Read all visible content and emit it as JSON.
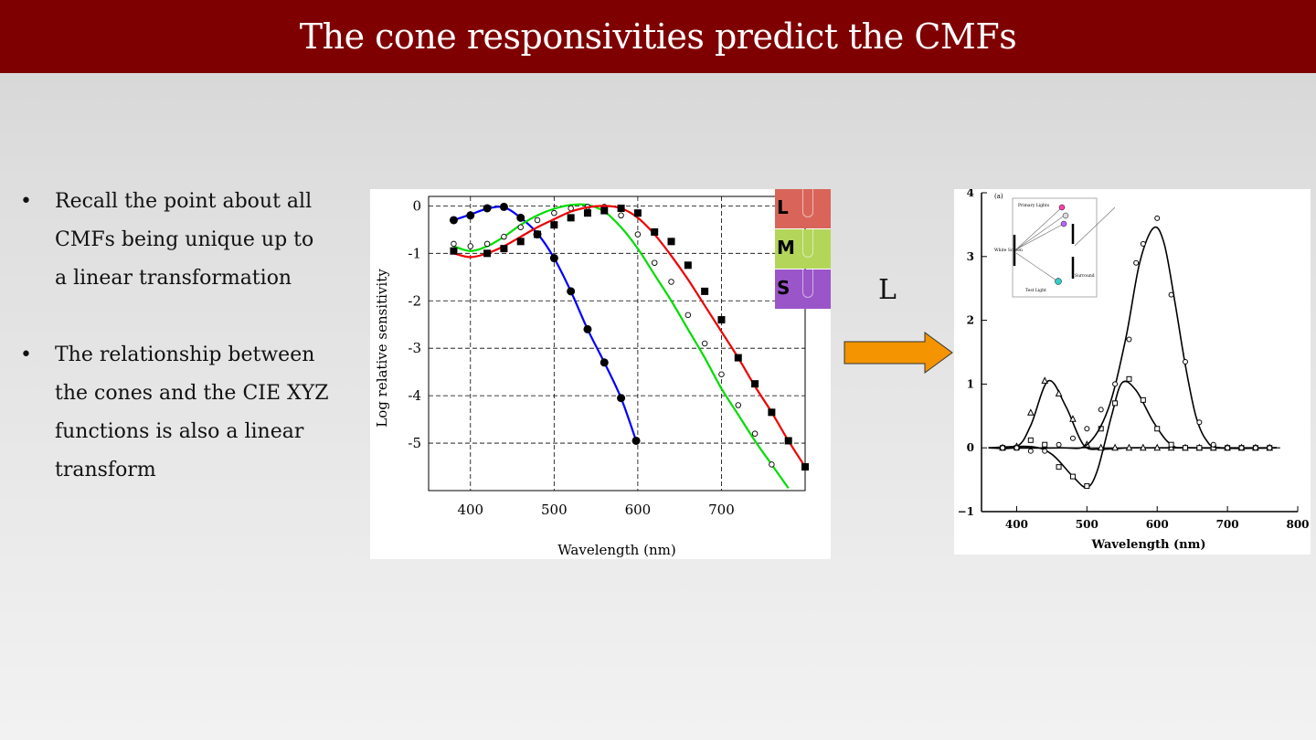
{
  "title": "The cone responsivities predict the CMFs",
  "bullets": [
    "Recall the point about all CMFs being unique up to a linear transformation",
    "The relationship between the cones and the CIE XYZ functions is also a linear transform"
  ],
  "bullet_marker": "•",
  "arrow_label": "L",
  "cone_labels": [
    {
      "letter": "L",
      "color": "#d9655a"
    },
    {
      "letter": "M",
      "color": "#b3d65a"
    },
    {
      "letter": "S",
      "color": "#9a55c9"
    }
  ],
  "colors": {
    "title_bg": "#7f0000",
    "arrow": "#f39400",
    "blue_curve": "#0000ff",
    "green_curve": "#00dd00",
    "red_curve": "#ee0000"
  },
  "chart_data": [
    {
      "type": "scatter",
      "xlabel": "Wavelength (nm)",
      "ylabel": "Log relative sensitivity",
      "xlim": [
        350,
        800
      ],
      "ylim": [
        -6,
        0.2
      ],
      "xticks": [
        400,
        500,
        600,
        700
      ],
      "yticks": [
        0,
        -1,
        -2,
        -3,
        -4,
        -5
      ],
      "grid": true,
      "series": [
        {
          "color": "#0000ff",
          "marker": "filled-circle",
          "x": [
            380,
            400,
            420,
            440,
            460,
            480,
            500,
            520,
            540,
            560,
            580,
            598
          ],
          "y": [
            -0.3,
            -0.2,
            -0.05,
            -0.02,
            -0.25,
            -0.6,
            -1.1,
            -1.8,
            -2.6,
            -3.3,
            -4.05,
            -4.95
          ],
          "curve": [
            [
              380,
              -0.3
            ],
            [
              400,
              -0.18
            ],
            [
              420,
              -0.06
            ],
            [
              440,
              -0.03
            ],
            [
              460,
              -0.25
            ],
            [
              480,
              -0.58
            ],
            [
              500,
              -1.1
            ],
            [
              520,
              -1.8
            ],
            [
              540,
              -2.6
            ],
            [
              560,
              -3.3
            ],
            [
              580,
              -4.05
            ],
            [
              598,
              -4.95
            ]
          ]
        },
        {
          "color": "#00dd00",
          "marker": "open-circle",
          "x": [
            380,
            400,
            420,
            440,
            460,
            480,
            500,
            520,
            540,
            560,
            580,
            600,
            620,
            640,
            660,
            680,
            700,
            720,
            740,
            760
          ],
          "y": [
            -0.8,
            -0.85,
            -0.8,
            -0.65,
            -0.45,
            -0.3,
            -0.15,
            -0.05,
            -0.02,
            -0.02,
            -0.2,
            -0.6,
            -1.2,
            -1.6,
            -2.3,
            -2.9,
            -3.55,
            -4.2,
            -4.8,
            -5.45
          ],
          "curve": [
            [
              380,
              -0.85
            ],
            [
              400,
              -0.95
            ],
            [
              420,
              -0.85
            ],
            [
              440,
              -0.65
            ],
            [
              460,
              -0.4
            ],
            [
              480,
              -0.2
            ],
            [
              500,
              -0.06
            ],
            [
              520,
              0.02
            ],
            [
              540,
              0.02
            ],
            [
              560,
              -0.12
            ],
            [
              580,
              -0.45
            ],
            [
              600,
              -0.9
            ],
            [
              620,
              -1.45
            ],
            [
              640,
              -2.0
            ],
            [
              660,
              -2.6
            ],
            [
              680,
              -3.2
            ],
            [
              700,
              -3.85
            ],
            [
              720,
              -4.4
            ],
            [
              740,
              -4.95
            ],
            [
              760,
              -5.45
            ],
            [
              780,
              -5.95
            ]
          ]
        },
        {
          "color": "#ee0000",
          "marker": "filled-square",
          "x": [
            380,
            420,
            440,
            460,
            480,
            500,
            520,
            540,
            560,
            580,
            600,
            620,
            640,
            660,
            680,
            700,
            720,
            740,
            760,
            780,
            800
          ],
          "y": [
            -0.95,
            -1.0,
            -0.9,
            -0.75,
            -0.6,
            -0.4,
            -0.25,
            -0.15,
            -0.1,
            -0.05,
            -0.15,
            -0.55,
            -0.75,
            -1.25,
            -1.8,
            -2.4,
            -3.2,
            -3.75,
            -4.35,
            -4.95,
            -5.5
          ],
          "curve": [
            [
              380,
              -1.0
            ],
            [
              400,
              -1.08
            ],
            [
              420,
              -1.0
            ],
            [
              440,
              -0.85
            ],
            [
              460,
              -0.65
            ],
            [
              480,
              -0.45
            ],
            [
              500,
              -0.28
            ],
            [
              520,
              -0.12
            ],
            [
              540,
              -0.03
            ],
            [
              560,
              0.0
            ],
            [
              580,
              -0.05
            ],
            [
              600,
              -0.25
            ],
            [
              620,
              -0.6
            ],
            [
              640,
              -1.05
            ],
            [
              660,
              -1.55
            ],
            [
              680,
              -2.1
            ],
            [
              700,
              -2.65
            ],
            [
              720,
              -3.2
            ],
            [
              740,
              -3.8
            ],
            [
              760,
              -4.35
            ],
            [
              780,
              -4.95
            ],
            [
              800,
              -5.5
            ]
          ]
        }
      ]
    },
    {
      "type": "line",
      "xlabel": "Wavelength (nm)",
      "ylabel": "",
      "xlim": [
        350,
        800
      ],
      "ylim": [
        -1,
        4
      ],
      "xticks": [
        400,
        500,
        600,
        700,
        800
      ],
      "yticks": [
        4,
        3,
        2,
        1,
        0,
        -1
      ],
      "inset_label": "(a)",
      "inset_text": [
        "Primary Lights",
        "White Screen",
        "Surround",
        "Test Light"
      ],
      "series": [
        {
          "x": [
            380,
            400,
            420,
            440,
            460,
            480,
            500,
            520,
            540,
            560,
            580,
            600,
            620,
            640,
            660,
            680,
            700,
            720,
            740,
            760
          ],
          "y": [
            0,
            0.02,
            0.55,
            1.05,
            0.85,
            0.45,
            0.05,
            0,
            0,
            0,
            0,
            0,
            0,
            0,
            0,
            0,
            0,
            0,
            0,
            0
          ],
          "curve": [
            [
              360,
              0
            ],
            [
              400,
              0.02
            ],
            [
              420,
              0.35
            ],
            [
              445,
              1.05
            ],
            [
              470,
              0.65
            ],
            [
              495,
              0.05
            ],
            [
              520,
              -0.02
            ],
            [
              560,
              0
            ],
            [
              600,
              0
            ],
            [
              700,
              0
            ],
            [
              770,
              0
            ]
          ]
        },
        {
          "x": [
            380,
            400,
            420,
            440,
            460,
            480,
            500,
            520,
            540,
            560,
            580,
            600,
            620,
            640,
            660,
            680,
            700,
            720,
            740,
            760
          ],
          "y": [
            0,
            0,
            0.12,
            0.05,
            -0.3,
            -0.45,
            -0.6,
            0.3,
            0.7,
            1.08,
            0.75,
            0.3,
            0.05,
            0,
            0,
            0,
            0,
            0,
            0,
            0
          ],
          "curve": [
            [
              360,
              0
            ],
            [
              420,
              0.02
            ],
            [
              450,
              -0.1
            ],
            [
              480,
              -0.45
            ],
            [
              500,
              -0.62
            ],
            [
              515,
              -0.35
            ],
            [
              535,
              0.5
            ],
            [
              550,
              1.02
            ],
            [
              570,
              0.9
            ],
            [
              595,
              0.4
            ],
            [
              620,
              0.05
            ],
            [
              650,
              0
            ],
            [
              770,
              0
            ]
          ]
        },
        {
          "x": [
            380,
            400,
            420,
            440,
            460,
            480,
            500,
            520,
            540,
            560,
            570,
            580,
            600,
            620,
            640,
            660,
            680,
            700,
            720,
            740,
            760
          ],
          "y": [
            0,
            0,
            -0.05,
            -0.05,
            0.05,
            0.15,
            0.3,
            0.6,
            1.0,
            1.7,
            2.9,
            3.2,
            3.6,
            2.4,
            1.35,
            0.4,
            0.05,
            0,
            0,
            0,
            0
          ],
          "curve": [
            [
              360,
              0
            ],
            [
              460,
              0
            ],
            [
              500,
              0.05
            ],
            [
              530,
              0.6
            ],
            [
              555,
              1.7
            ],
            [
              575,
              2.9
            ],
            [
              595,
              3.45
            ],
            [
              610,
              3.2
            ],
            [
              625,
              2.3
            ],
            [
              640,
              1.3
            ],
            [
              655,
              0.5
            ],
            [
              670,
              0.12
            ],
            [
              690,
              0
            ],
            [
              770,
              0
            ]
          ]
        }
      ]
    }
  ]
}
